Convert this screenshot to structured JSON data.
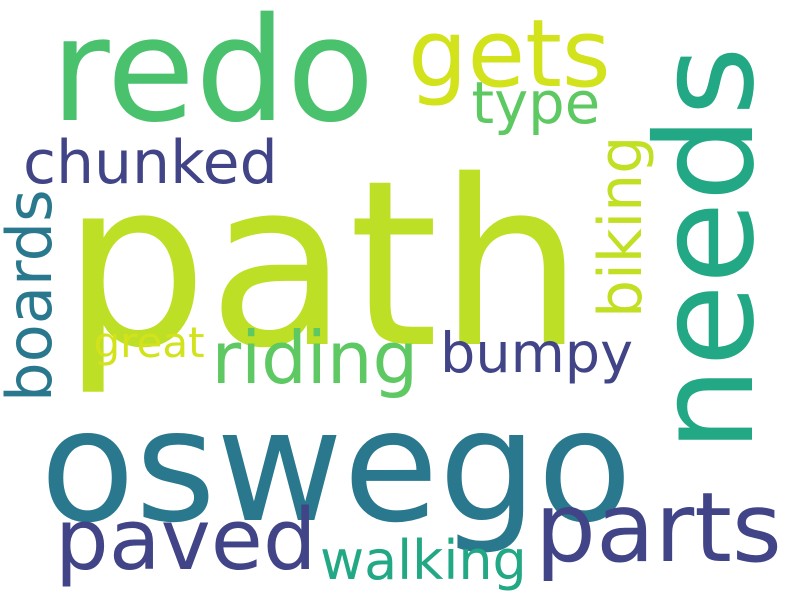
{
  "words": [
    {
      "text": "path",
      "color": "#bddf26"
    },
    {
      "text": "oswego",
      "color": "#2a788e"
    },
    {
      "text": "redo",
      "color": "#4ac16d"
    },
    {
      "text": "needs",
      "color": "#22a884"
    },
    {
      "text": "gets",
      "color": "#d2e21b"
    },
    {
      "text": "type",
      "color": "#5ec962"
    },
    {
      "text": "chunked",
      "color": "#414487"
    },
    {
      "text": "boards",
      "color": "#2a788e"
    },
    {
      "text": "biking",
      "color": "#c2df23"
    },
    {
      "text": "great",
      "color": "#d2e21b"
    },
    {
      "text": "riding",
      "color": "#5ec962"
    },
    {
      "text": "bumpy",
      "color": "#414487"
    },
    {
      "text": "paved",
      "color": "#414487"
    },
    {
      "text": "walking",
      "color": "#22a884"
    },
    {
      "text": "parts",
      "color": "#414487"
    }
  ]
}
